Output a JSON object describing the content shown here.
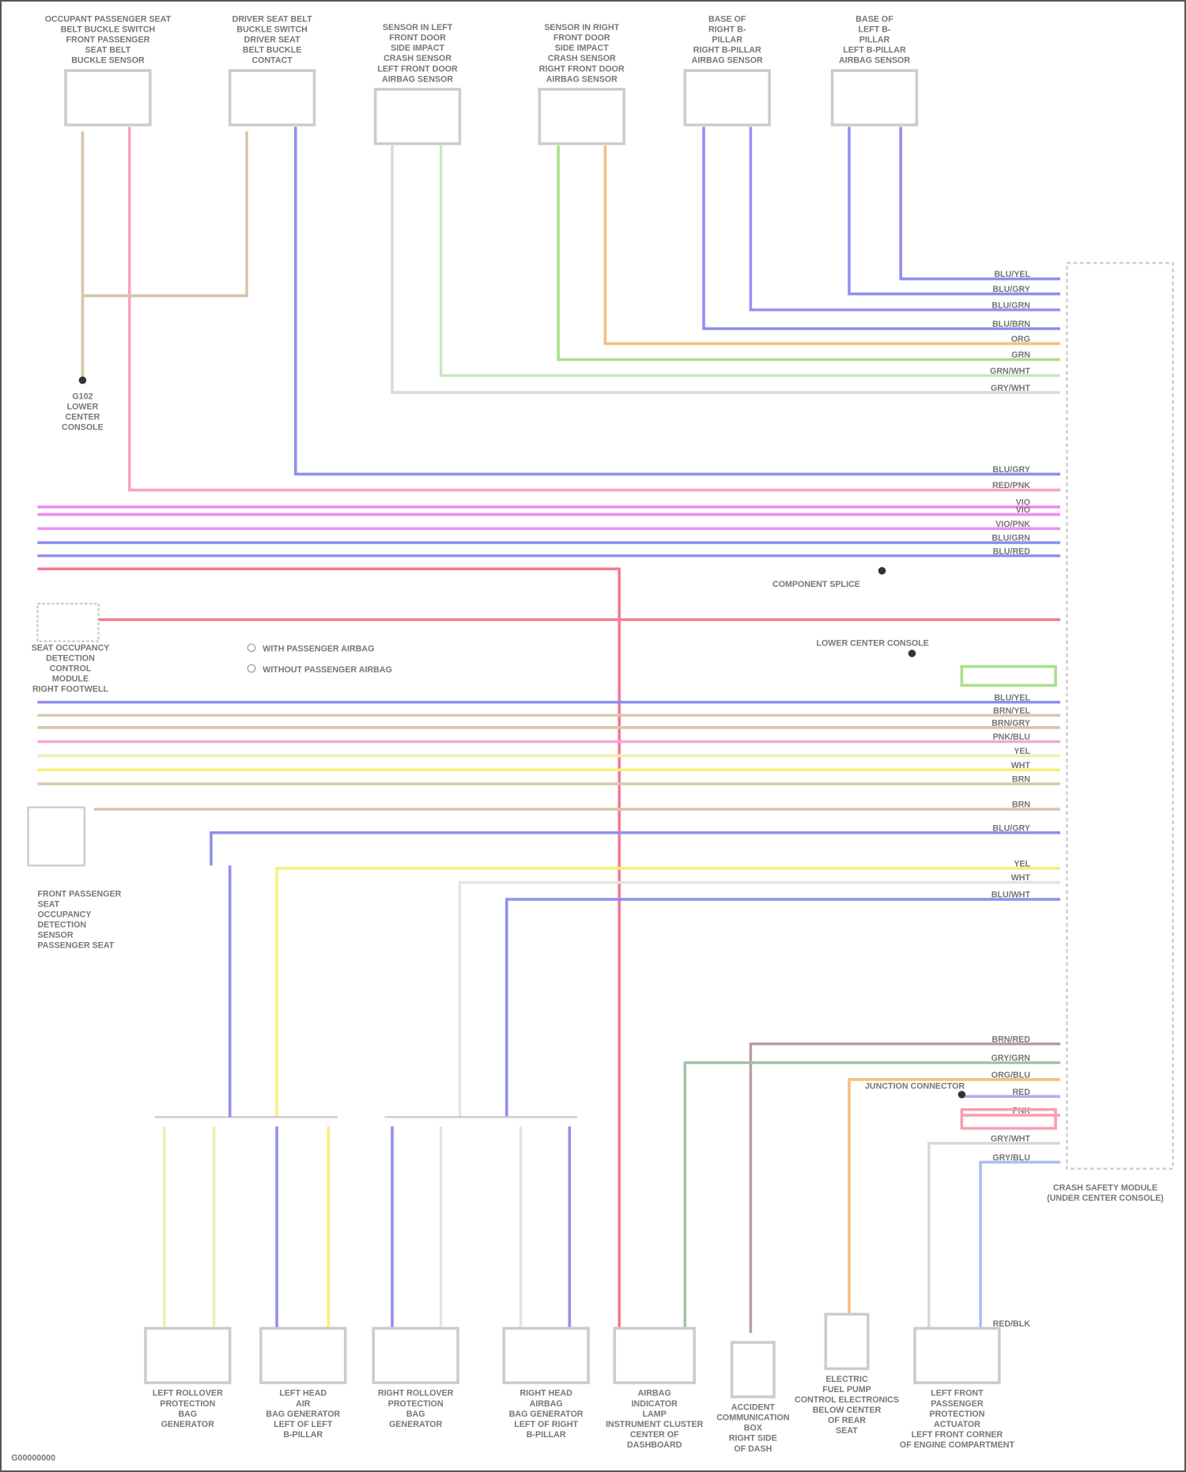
{
  "components_top": [
    {
      "label": [
        "OCCUPANT PASSENGER SEAT",
        "BELT BUCKLE SWITCH",
        "FRONT PASSENGER",
        "SEAT BELT",
        "BUCKLE SENSOR"
      ]
    },
    {
      "label": [
        "DRIVER SEAT BELT",
        "BUCKLE SWITCH",
        "DRIVER SEAT",
        "BELT BUCKLE",
        "CONTACT"
      ]
    },
    {
      "label": [
        "SENSOR IN LEFT",
        "FRONT DOOR",
        "SIDE IMPACT",
        "CRASH SENSOR",
        "LEFT FRONT DOOR",
        "AIRBAG SENSOR"
      ]
    },
    {
      "label": [
        "SENSOR IN RIGHT",
        "FRONT DOOR",
        "SIDE IMPACT",
        "CRASH SENSOR",
        "RIGHT FRONT DOOR",
        "AIRBAG SENSOR"
      ]
    },
    {
      "label": [
        "BASE OF",
        "RIGHT B-",
        "PILLAR",
        "RIGHT B-PILLAR",
        "AIRBAG SENSOR"
      ]
    },
    {
      "label": [
        "BASE OF",
        "LEFT B-",
        "PILLAR",
        "LEFT B-PILLAR",
        "AIRBAG SENSOR"
      ]
    }
  ],
  "components_bottom": [
    {
      "label": [
        "LEFT ROLLOVER",
        "PROTECTION",
        "BAG",
        "GENERATOR"
      ]
    },
    {
      "label": [
        "LEFT HEAD",
        "AIR",
        "BAG GENERATOR",
        "LEFT OF LEFT",
        "B-PILLAR"
      ]
    },
    {
      "label": [
        "RIGHT ROLLOVER",
        "PROTECTION",
        "BAG",
        "GENERATOR"
      ]
    },
    {
      "label": [
        "RIGHT HEAD",
        "AIRBAG",
        "BAG GENERATOR",
        "LEFT OF RIGHT",
        "B-PILLAR"
      ]
    },
    {
      "label": [
        "AIRBAG",
        "INDICATOR",
        "LAMP",
        "INSTRUMENT CLUSTER",
        "CENTER OF",
        "DASHBOARD"
      ]
    },
    {
      "label": [
        "ACCIDENT",
        "COMMUNICATION",
        "BOX",
        "RIGHT SIDE",
        "OF DASH"
      ]
    },
    {
      "label": [
        "ELECTRIC",
        "FUEL PUMP",
        "CONTROL ELECTRONICS",
        "BELOW CENTER",
        "OF REAR",
        "SEAT"
      ]
    },
    {
      "label": [
        "LEFT FRONT",
        "PASSENGER",
        "PROTECTION",
        "ACTUATOR",
        "LEFT FRONT CORNER",
        "OF ENGINE COMPARTMENT"
      ]
    }
  ],
  "left_components": [
    {
      "label": [
        "SEAT OCCUPANCY",
        "DETECTION",
        "CONTROL",
        "MODULE",
        "RIGHT FOOTWELL"
      ]
    },
    {
      "label": [
        "FRONT PASSENGER",
        "SEAT",
        "OCCUPANCY",
        "DETECTION",
        "SENSOR",
        "PASSENGER SEAT"
      ]
    }
  ],
  "ground": {
    "label": [
      "G102",
      "LOWER",
      "CENTER",
      "CONSOLE"
    ]
  },
  "main_module": {
    "label": [
      "CRASH SAFETY MODULE",
      "(UNDER CENTER CONSOLE)"
    ]
  },
  "legend": {
    "items": [
      "WITH PASSENGER AIRBAG",
      "WITHOUT PASSENGER AIRBAG"
    ]
  },
  "splices": [
    "COMPONENT SPLICE",
    "LOWER CENTER CONSOLE",
    "JUNCTION CONNECTOR"
  ],
  "wires": [
    {
      "label": "BLU/YEL",
      "color": "#8f8ff0"
    },
    {
      "label": "BLU/GRY",
      "color": "#8f8ff0"
    },
    {
      "label": "BLU/GRN",
      "color": "#9a90f5"
    },
    {
      "label": "BLU/BRN",
      "color": "#8f8ff0"
    },
    {
      "label": "ORG",
      "color": "#f5c080"
    },
    {
      "label": "GRN",
      "color": "#a8e08a"
    },
    {
      "label": "GRN/WHT",
      "color": "#c8e8c0"
    },
    {
      "label": "GRY/WHT",
      "color": "#d8dcd8"
    },
    {
      "label": "BLU/GRY",
      "color": "#8f8ff0"
    },
    {
      "label": "RED/PNK",
      "color": "#f6a3c8"
    },
    {
      "label": "VIO",
      "color": "#f08cf0"
    },
    {
      "label": "VIO",
      "color": "#f08cf0"
    },
    {
      "label": "VIO/PNK",
      "color": "#f08cf0"
    },
    {
      "label": "BLU/GRN",
      "color": "#8f8ff0"
    },
    {
      "label": "BLU/RED",
      "color": "#8f8ff0"
    },
    {
      "label": "RED/BLK",
      "color": "#f47a90"
    },
    {
      "label": "BLU/YEL",
      "color": "#8f8ff0"
    },
    {
      "label": "BRN/YEL",
      "color": "#d8c8a8"
    },
    {
      "label": "BRN/GRY",
      "color": "#d8c8a8"
    },
    {
      "label": "PNK/BLU",
      "color": "#f3a6d8"
    },
    {
      "label": "YEL",
      "color": "#f0eeb0"
    },
    {
      "label": "WHT",
      "color": "#f7f07a"
    },
    {
      "label": "BRN",
      "color": "#d8c8a8"
    },
    {
      "label": "BRN",
      "color": "#d8c8a8"
    },
    {
      "label": "BLU/GRY",
      "color": "#8f8ff0"
    },
    {
      "label": "YEL",
      "color": "#f7f07a"
    },
    {
      "label": "WHT",
      "color": "#e4e4e4"
    },
    {
      "label": "BLU/WHT",
      "color": "#8f8ff0"
    },
    {
      "label": "BRN/RED",
      "color": "#b8a0a0"
    },
    {
      "label": "GRY/GRN",
      "color": "#a8c0a8"
    },
    {
      "label": "ORG/BLU",
      "color": "#f5c080"
    },
    {
      "label": "RED",
      "color": "#c0a8f0"
    },
    {
      "label": "PNK",
      "color": "#f7a0b0"
    },
    {
      "label": "GRY/WHT",
      "color": "#d8d8d8"
    },
    {
      "label": "GRY/BLU",
      "color": "#a8c0f0"
    }
  ],
  "footer": {
    "text": "G00000000"
  }
}
